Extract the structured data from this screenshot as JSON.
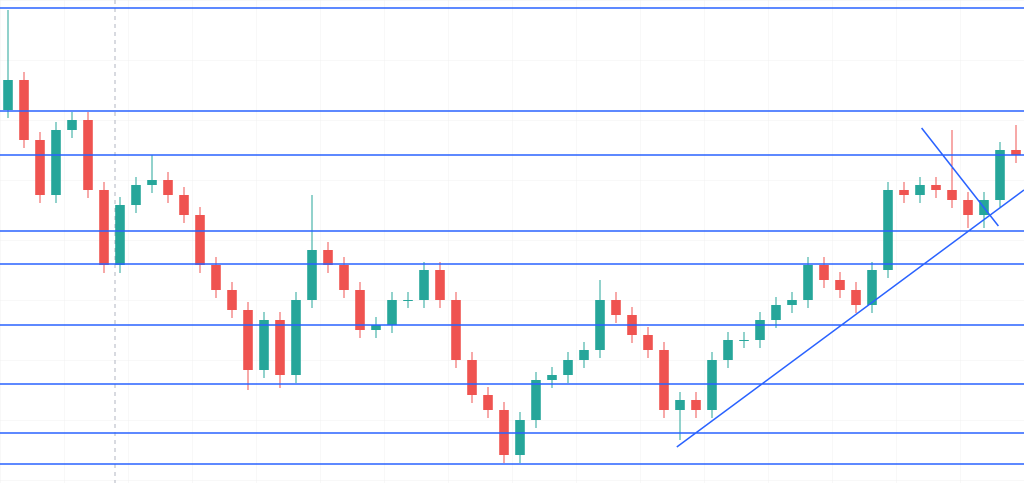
{
  "chart_data": {
    "type": "candlestick",
    "up_color": "#26a69a",
    "down_color": "#ef5350",
    "line_color": "#2962ff",
    "ylim": [
      0,
      483
    ],
    "open": [
      373,
      403,
      343,
      288,
      353,
      363,
      293,
      218,
      278,
      298,
      303,
      288,
      268,
      218,
      193,
      173,
      113,
      163,
      108,
      183,
      233,
      218,
      193,
      153,
      158,
      183,
      183,
      213,
      183,
      123,
      88,
      73,
      28,
      63,
      103,
      108,
      123,
      133,
      183,
      168,
      148,
      133,
      73,
      83,
      73,
      123,
      143,
      143,
      163,
      178,
      183,
      218,
      203,
      193,
      178,
      213,
      293,
      288,
      298,
      293,
      283,
      268,
      283,
      333
    ],
    "high": [
      473,
      411,
      351,
      361,
      371,
      371,
      301,
      286,
      306,
      328,
      311,
      296,
      276,
      226,
      201,
      181,
      171,
      171,
      191,
      288,
      241,
      226,
      201,
      166,
      191,
      191,
      221,
      221,
      191,
      131,
      96,
      81,
      71,
      111,
      116,
      131,
      141,
      203,
      191,
      176,
      156,
      141,
      91,
      91,
      131,
      151,
      151,
      171,
      186,
      191,
      226,
      226,
      211,
      201,
      221,
      301,
      301,
      306,
      306,
      353,
      291,
      291,
      341,
      358
    ],
    "low": [
      365,
      335,
      280,
      280,
      345,
      285,
      210,
      210,
      270,
      290,
      280,
      260,
      210,
      185,
      165,
      93,
      105,
      95,
      100,
      175,
      210,
      185,
      145,
      145,
      150,
      175,
      175,
      175,
      115,
      80,
      65,
      20,
      20,
      55,
      95,
      100,
      115,
      125,
      160,
      140,
      125,
      65,
      43,
      65,
      65,
      115,
      135,
      135,
      155,
      170,
      175,
      195,
      185,
      170,
      170,
      205,
      280,
      280,
      285,
      275,
      255,
      255,
      275,
      320
    ],
    "close": [
      403,
      343,
      288,
      353,
      363,
      293,
      218,
      278,
      298,
      303,
      288,
      268,
      218,
      193,
      173,
      113,
      163,
      108,
      183,
      233,
      218,
      193,
      153,
      158,
      183,
      183,
      213,
      183,
      123,
      88,
      73,
      28,
      63,
      103,
      108,
      123,
      133,
      183,
      168,
      148,
      133,
      73,
      83,
      73,
      123,
      143,
      143,
      163,
      178,
      183,
      218,
      203,
      193,
      178,
      213,
      293,
      288,
      298,
      293,
      283,
      268,
      283,
      333,
      328
    ],
    "levels": [
      475,
      372,
      328,
      252,
      219,
      158,
      99,
      50,
      19
    ],
    "trendlines": [
      {
        "x": [
          41.8,
          63.5
        ],
        "y": [
          36,
          293
        ]
      },
      {
        "x": [
          57.1,
          61.9
        ],
        "y": [
          355,
          257
        ]
      }
    ]
  }
}
